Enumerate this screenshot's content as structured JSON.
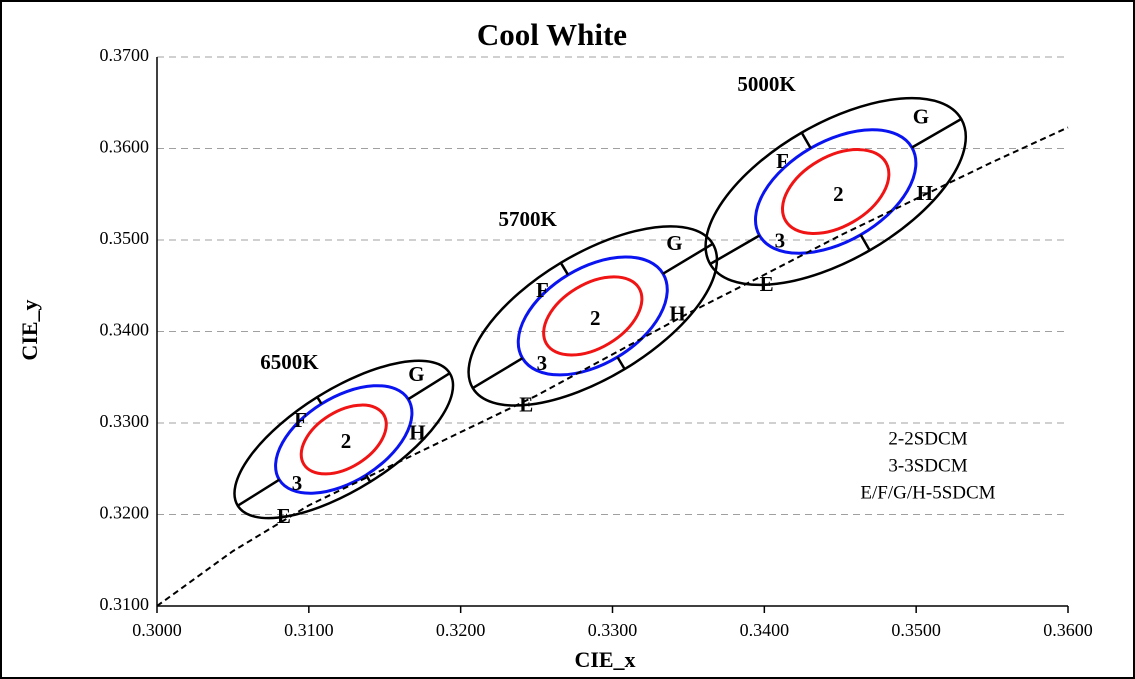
{
  "chart_data": {
    "type": "scatter",
    "title": "Cool White",
    "x_label": "CIE_x",
    "y_label": "CIE_y",
    "xlim": [
      0.3,
      0.36
    ],
    "ylim": [
      0.31,
      0.37
    ],
    "xticks": [
      {
        "value": 0.3,
        "label": "0.3000"
      },
      {
        "value": 0.31,
        "label": "0.3100"
      },
      {
        "value": 0.32,
        "label": "0.3200"
      },
      {
        "value": 0.33,
        "label": "0.3300"
      },
      {
        "value": 0.34,
        "label": "0.3400"
      },
      {
        "value": 0.35,
        "label": "0.3500"
      },
      {
        "value": 0.36,
        "label": "0.3600"
      }
    ],
    "yticks": [
      {
        "value": 0.31,
        "label": "0.3100"
      },
      {
        "value": 0.32,
        "label": "0.3200"
      },
      {
        "value": 0.33,
        "label": "0.3300"
      },
      {
        "value": 0.34,
        "label": "0.3400"
      },
      {
        "value": 0.35,
        "label": "0.3500"
      },
      {
        "value": 0.36,
        "label": "0.3600"
      },
      {
        "value": 0.37,
        "label": "0.3700"
      }
    ],
    "grid": true,
    "groups": [
      {
        "name": "6500K",
        "x": 0.3123,
        "y": 0.3282
      },
      {
        "name": "5700K",
        "x": 0.3287,
        "y": 0.3417
      },
      {
        "name": "5000K",
        "x": 0.3447,
        "y": 0.3553
      }
    ],
    "step_labels": [
      "2",
      "3"
    ],
    "zone_labels": [
      "E",
      "F",
      "G",
      "H"
    ],
    "colors": {
      "outer": "#000000",
      "step3": "#0a14f0",
      "step2": "#f01414"
    },
    "curve": {
      "x": [
        0.3,
        0.305,
        0.31,
        0.315,
        0.32,
        0.325,
        0.33,
        0.335,
        0.34,
        0.345,
        0.35,
        0.355,
        0.36
      ],
      "y": [
        0.31,
        0.316,
        0.321,
        0.325,
        0.329,
        0.333,
        0.3375,
        0.342,
        0.3462,
        0.3505,
        0.3545,
        0.3585,
        0.3623
      ]
    },
    "notes": [
      "2-2SDCM",
      "3-3SDCM",
      "E/F/G/H-5SDCM"
    ]
  }
}
